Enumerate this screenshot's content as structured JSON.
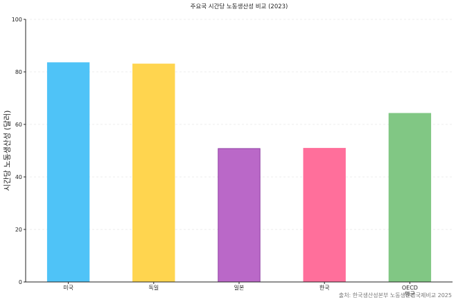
{
  "chart_data": {
    "type": "bar",
    "title": "주요국 시간당 노동생산성 비교 (2023)",
    "xlabel": "",
    "ylabel": "시간당 노동생산성 (달러)",
    "ylim": [
      0,
      100
    ],
    "yticks": [
      0,
      20,
      40,
      60,
      80,
      100
    ],
    "categories": [
      "미국",
      "독일",
      "일본",
      "한국",
      "OECD\n평균"
    ],
    "values": [
      83.5,
      83.0,
      50.8,
      50.9,
      64.2
    ],
    "colors": [
      "#4fc3f7",
      "#ffd54f",
      "#ba68c8",
      "#ff6f9b",
      "#81c784"
    ],
    "edge_colors": [
      "#4fc3f7",
      "#ffd54f",
      "#8e3fa3",
      "#ff6f9b",
      "#81c784"
    ],
    "grid": true,
    "source": "출처: 한국생산성본부 노동생산성국제비교 2025"
  }
}
